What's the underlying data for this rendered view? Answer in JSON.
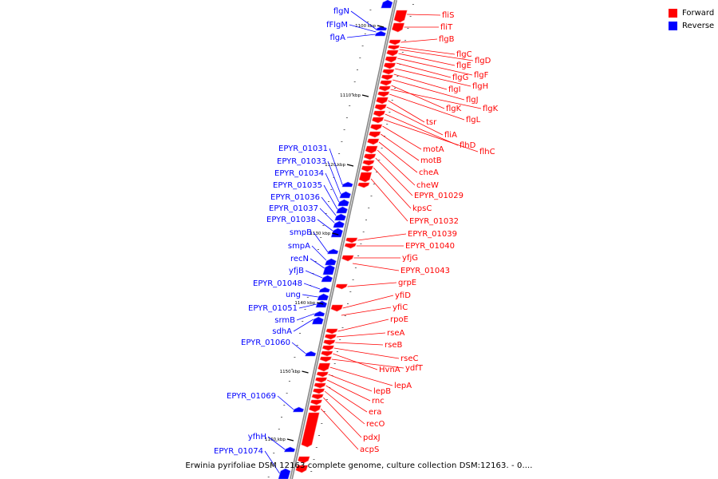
{
  "legend": {
    "forward": {
      "label": "Forward",
      "color": "#ff0000"
    },
    "reverse": {
      "label": "Reverse",
      "color": "#0000ff"
    }
  },
  "caption": "Erwinia pyrifoliae DSM 12163 complete genome, culture collection DSM:12163. - 0....",
  "ticks": [
    "1100 kbp",
    "1110 kbp",
    "1120 kbp",
    "1130 kbp",
    "1140 kbp",
    "1150 kbp",
    "1160 kbp"
  ],
  "reverse_genes": [
    "flgN",
    "fFlgM",
    "flgA",
    "EPYR_01031",
    "EPYR_01033",
    "EPYR_01034",
    "EPYR_01035",
    "EPYR_01036",
    "EPYR_01037",
    "EPYR_01038",
    "smpB",
    "smpA",
    "recN",
    "yfjB",
    "EPYR_01048",
    "ung",
    "EPYR_01051",
    "srmB",
    "sdhA",
    "EPYR_01060",
    "EPYR_01069",
    "yfhH",
    "EPYR_01074"
  ],
  "forward_genes": [
    "fliS",
    "fliT",
    "flgB",
    "flgC",
    "flgD",
    "flgE",
    "flgF",
    "flgG",
    "flgH",
    "flgI",
    "flgJ",
    "flgK",
    "flgK",
    "flgL",
    "tsr",
    "fliA",
    "flhD",
    "flhC",
    "motA",
    "motB",
    "cheA",
    "cheW",
    "EPYR_01029",
    "kpsC",
    "EPYR_01032",
    "EPYR_01039",
    "EPYR_01040",
    "yfjG",
    "EPYR_01043",
    "grpE",
    "yfiD",
    "yfiC",
    "rpoE",
    "rseA",
    "rseB",
    "rseC",
    "HvnA",
    "ydfT",
    "lepA",
    "lepB",
    "rnc",
    "era",
    "recO",
    "pdxJ",
    "acpS"
  ]
}
